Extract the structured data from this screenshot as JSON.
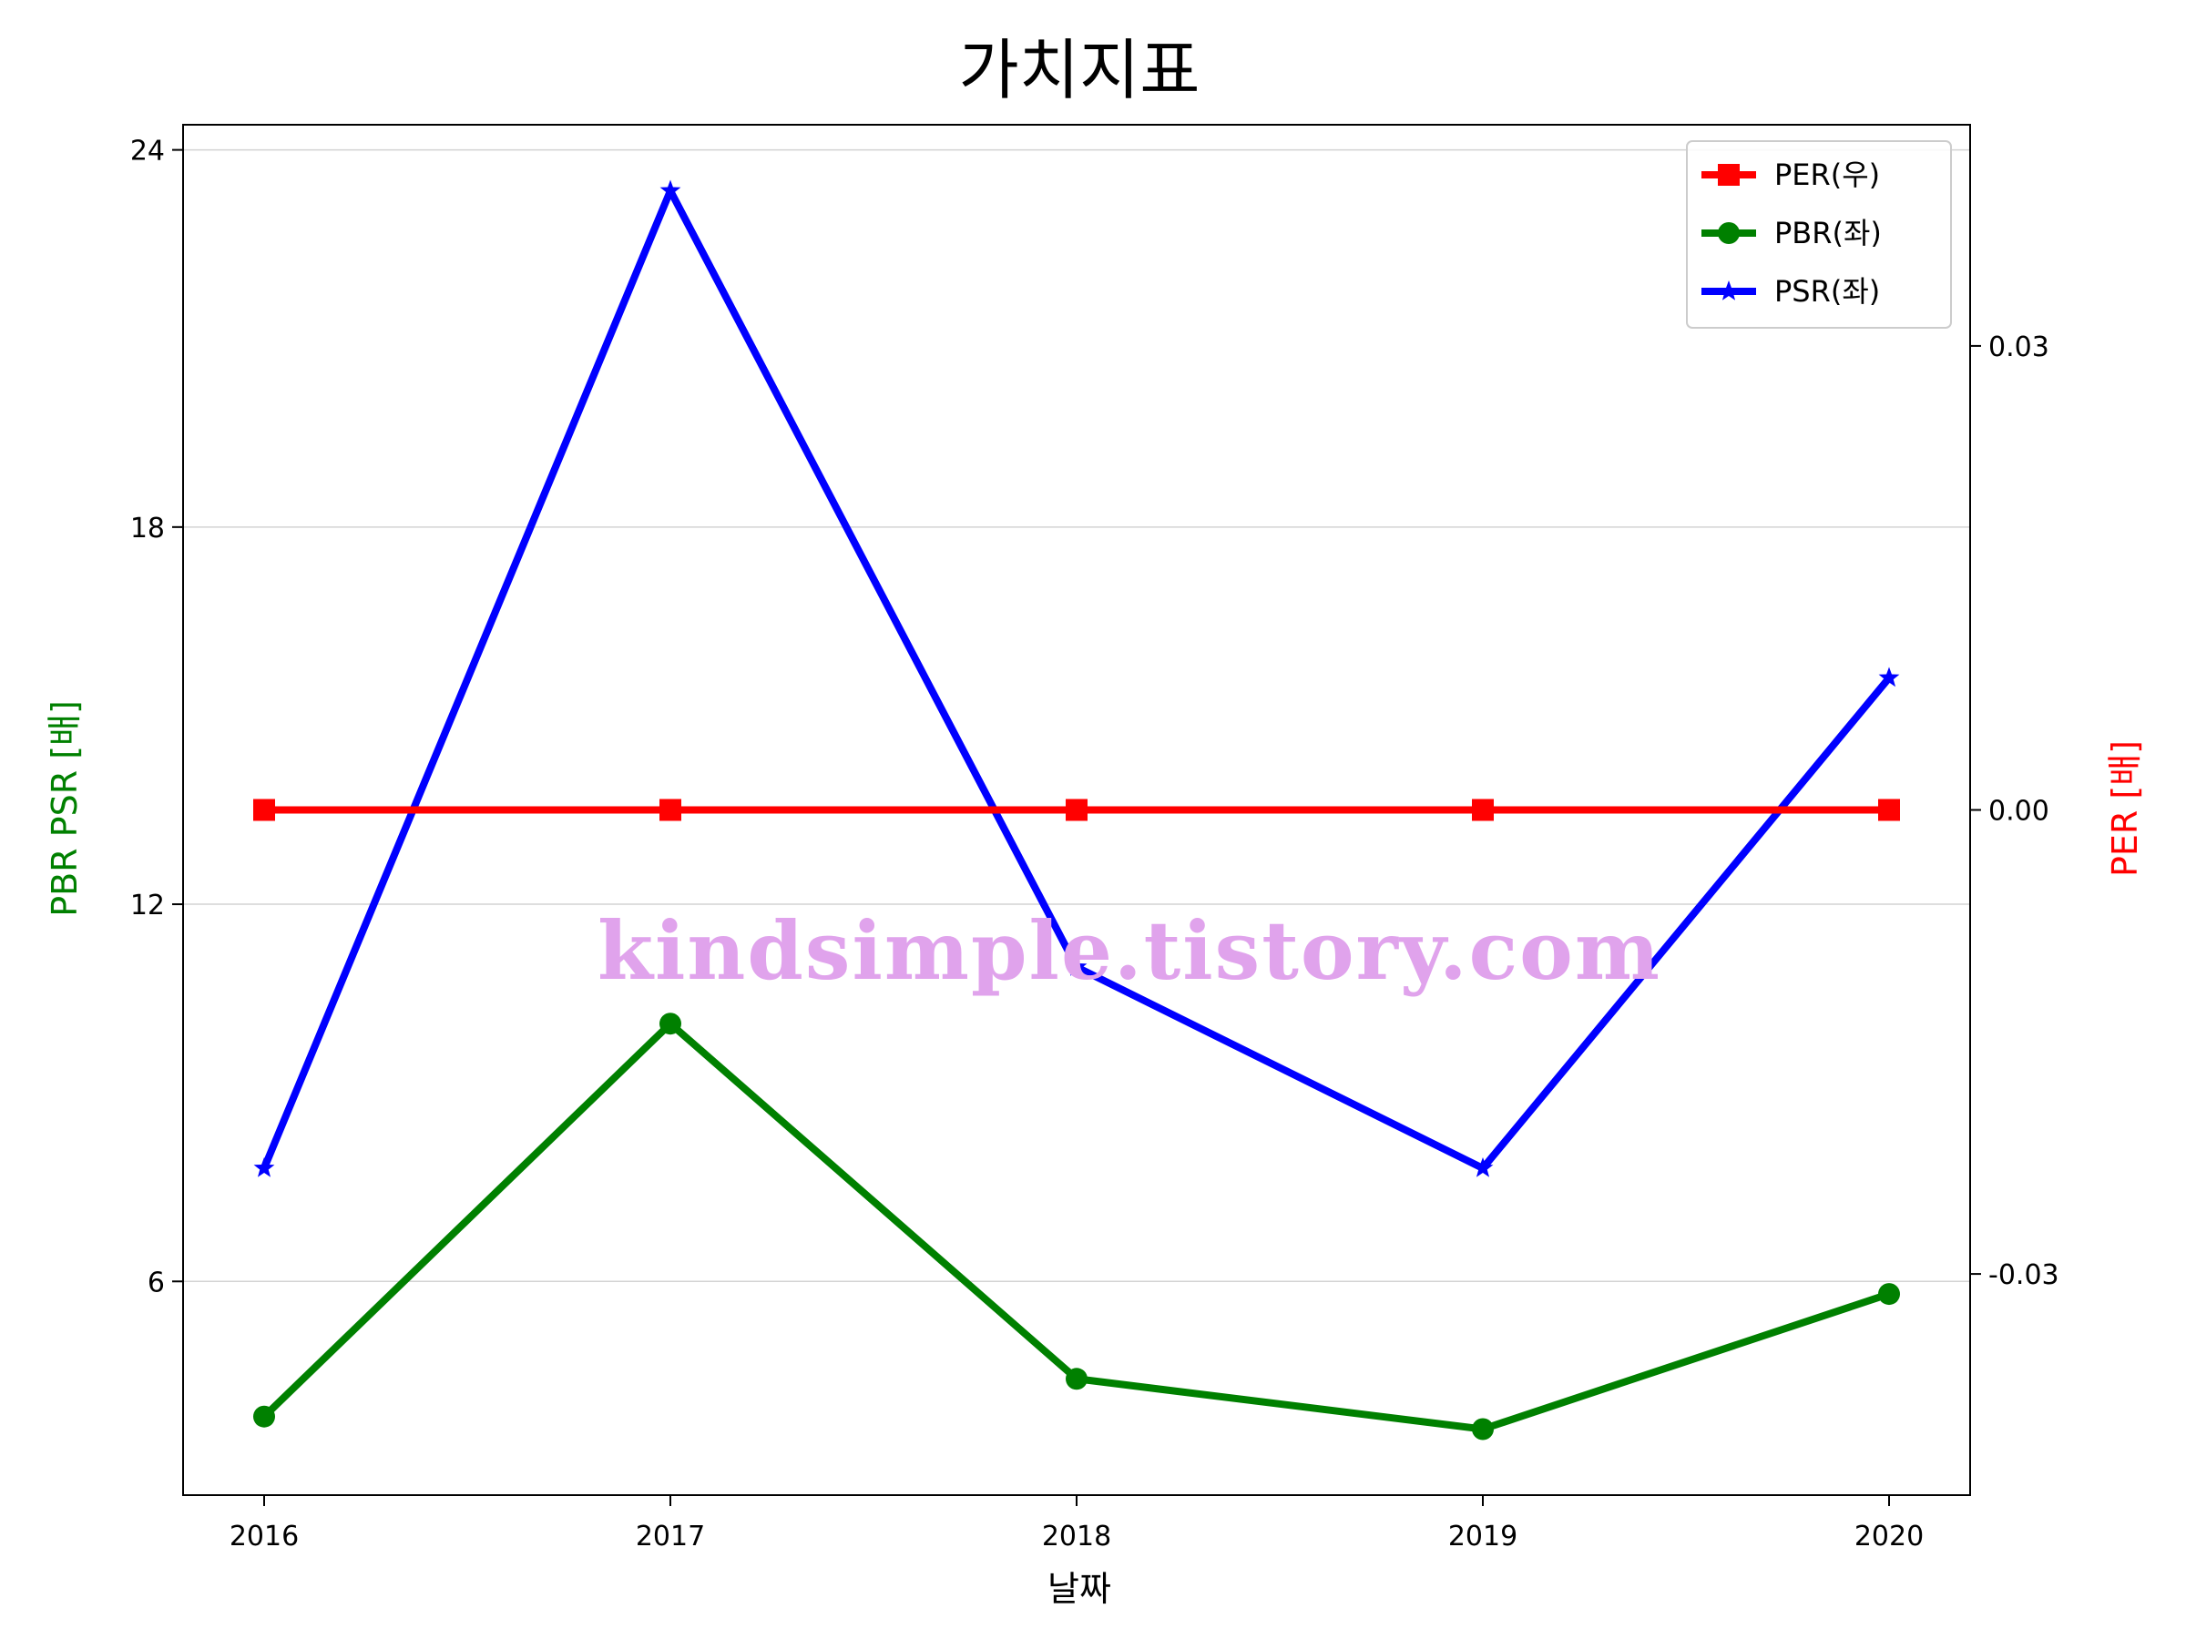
{
  "chart_data": {
    "type": "line",
    "title": "가치지표",
    "xlabel": "날짜",
    "ylabel_left": "PBR PSR [배]",
    "ylabel_right": "PER [배]",
    "ylabel_left_color": "#008000",
    "ylabel_right_color": "#ff0000",
    "categories": [
      "2016",
      "2017",
      "2018",
      "2019",
      "2020"
    ],
    "left_axis": {
      "ylim": [
        2.6,
        24.4
      ],
      "ticks": [
        6,
        12,
        18,
        24
      ],
      "tick_labels": [
        "6",
        "12",
        "18",
        "24"
      ]
    },
    "right_axis": {
      "ylim": [
        -0.0443,
        0.0443
      ],
      "ticks": [
        -0.03,
        0.0,
        0.03
      ],
      "tick_labels": [
        "-0.03",
        "0.00",
        "0.03"
      ]
    },
    "grid": true,
    "legend_position": "top-right",
    "series": [
      {
        "name": "PER(우)",
        "axis": "right",
        "color": "#ff0000",
        "marker": "square",
        "values": [
          0,
          0,
          0,
          0,
          0
        ]
      },
      {
        "name": "PBR(좌)",
        "axis": "left",
        "color": "#008000",
        "marker": "circle",
        "values": [
          3.85,
          10.1,
          4.45,
          3.65,
          5.8
        ]
      },
      {
        "name": "PSR(좌)",
        "axis": "left",
        "color": "#0000ff",
        "marker": "star",
        "values": [
          7.8,
          23.35,
          11.0,
          7.8,
          15.6
        ]
      }
    ],
    "watermark": "kindsimple.tistory.com"
  }
}
